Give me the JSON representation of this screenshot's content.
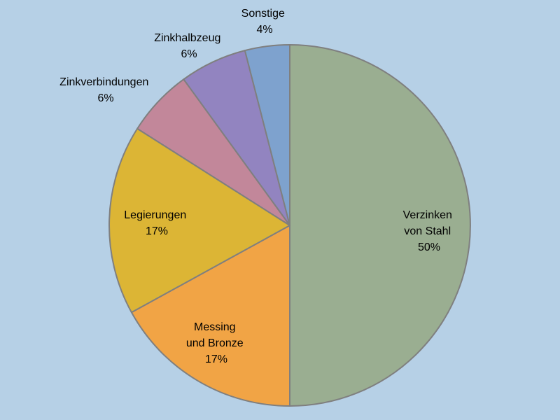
{
  "chart_data": {
    "type": "pie",
    "title": "",
    "start": "12 o'clock",
    "direction": "clockwise",
    "slices": [
      {
        "label_lines": [
          "Verzinken",
          "von Stahl"
        ],
        "percent_label": "50%",
        "value": 50,
        "color": "#9aae91"
      },
      {
        "label_lines": [
          "Messing",
          "und Bronze"
        ],
        "percent_label": "17%",
        "value": 17,
        "color": "#f1a445"
      },
      {
        "label_lines": [
          "Legierungen"
        ],
        "percent_label": "17%",
        "value": 17,
        "color": "#dcb535"
      },
      {
        "label_lines": [
          "Zinkverbindungen"
        ],
        "percent_label": "6%",
        "value": 6,
        "color": "#c2879a"
      },
      {
        "label_lines": [
          "Zinkhalbzeug"
        ],
        "percent_label": "6%",
        "value": 6,
        "color": "#9284c0"
      },
      {
        "label_lines": [
          "Sonstige"
        ],
        "percent_label": "4%",
        "value": 4,
        "color": "#7ea2ce"
      }
    ]
  },
  "colors": {
    "background": "#b6d0e6",
    "slice_border": "#7f7f7f"
  }
}
